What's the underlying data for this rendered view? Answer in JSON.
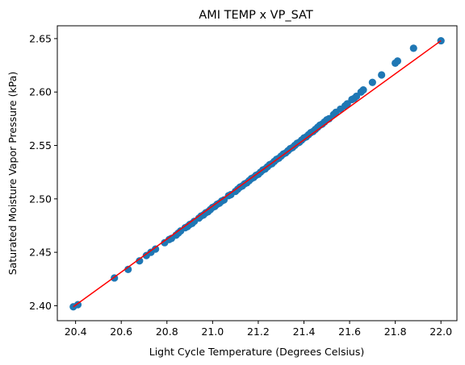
{
  "chart_data": {
    "type": "scatter",
    "title": "AMI TEMP x VP_SAT",
    "xlabel": "Light Cycle Temperature (Degrees Celsius)",
    "ylabel": "Saturated Moisture Vapor Pressure (kPa)",
    "xlim": [
      20.32,
      22.07
    ],
    "ylim": [
      2.386,
      2.662
    ],
    "x_ticks": [
      "20.4",
      "20.6",
      "20.8",
      "21.0",
      "21.2",
      "21.4",
      "21.6",
      "21.8",
      "22.0"
    ],
    "y_ticks": [
      "2.40",
      "2.45",
      "2.50",
      "2.55",
      "2.60",
      "2.65"
    ],
    "grid": false,
    "colors": {
      "points": "#1f77b4",
      "fit_line": "#ff0000",
      "axes": "#000000"
    },
    "series": [
      {
        "kind": "scatter",
        "x": [
          20.39,
          20.41,
          20.57,
          20.63,
          20.68,
          20.71,
          20.73,
          20.75,
          20.79,
          20.81,
          20.82,
          20.84,
          20.85,
          20.86,
          20.88,
          20.89,
          20.9,
          20.91,
          20.92,
          20.94,
          20.95,
          20.96,
          20.97,
          20.98,
          20.99,
          21.0,
          21.01,
          21.02,
          21.03,
          21.04,
          21.05,
          21.07,
          21.08,
          21.1,
          21.11,
          21.12,
          21.13,
          21.14,
          21.15,
          21.16,
          21.17,
          21.18,
          21.19,
          21.2,
          21.21,
          21.22,
          21.23,
          21.24,
          21.25,
          21.26,
          21.27,
          21.28,
          21.29,
          21.3,
          21.31,
          21.32,
          21.33,
          21.34,
          21.35,
          21.36,
          21.37,
          21.38,
          21.39,
          21.4,
          21.41,
          21.42,
          21.43,
          21.44,
          21.45,
          21.46,
          21.47,
          21.48,
          21.49,
          21.5,
          21.51,
          21.53,
          21.54,
          21.56,
          21.58,
          21.59,
          21.61,
          21.62,
          21.63,
          21.65,
          21.66,
          21.7,
          21.74,
          21.8,
          21.81,
          21.88,
          22.0
        ],
        "y": [
          2.399,
          2.401,
          2.426,
          2.434,
          2.442,
          2.447,
          2.45,
          2.453,
          2.459,
          2.462,
          2.463,
          2.466,
          2.468,
          2.47,
          2.473,
          2.474,
          2.476,
          2.477,
          2.479,
          2.482,
          2.484,
          2.485,
          2.487,
          2.488,
          2.49,
          2.492,
          2.493,
          2.495,
          2.496,
          2.498,
          2.499,
          2.503,
          2.504,
          2.507,
          2.509,
          2.511,
          2.512,
          2.514,
          2.515,
          2.517,
          2.519,
          2.52,
          2.522,
          2.523,
          2.525,
          2.527,
          2.528,
          2.53,
          2.532,
          2.533,
          2.535,
          2.537,
          2.538,
          2.54,
          2.542,
          2.543,
          2.545,
          2.547,
          2.548,
          2.55,
          2.552,
          2.553,
          2.555,
          2.557,
          2.558,
          2.56,
          2.562,
          2.563,
          2.565,
          2.567,
          2.569,
          2.57,
          2.572,
          2.574,
          2.575,
          2.579,
          2.581,
          2.584,
          2.587,
          2.589,
          2.593,
          2.594,
          2.596,
          2.6,
          2.602,
          2.609,
          2.616,
          2.627,
          2.629,
          2.641,
          2.648
        ]
      },
      {
        "kind": "line",
        "x": [
          20.39,
          22.0
        ],
        "y": [
          2.399,
          2.648
        ]
      }
    ]
  }
}
